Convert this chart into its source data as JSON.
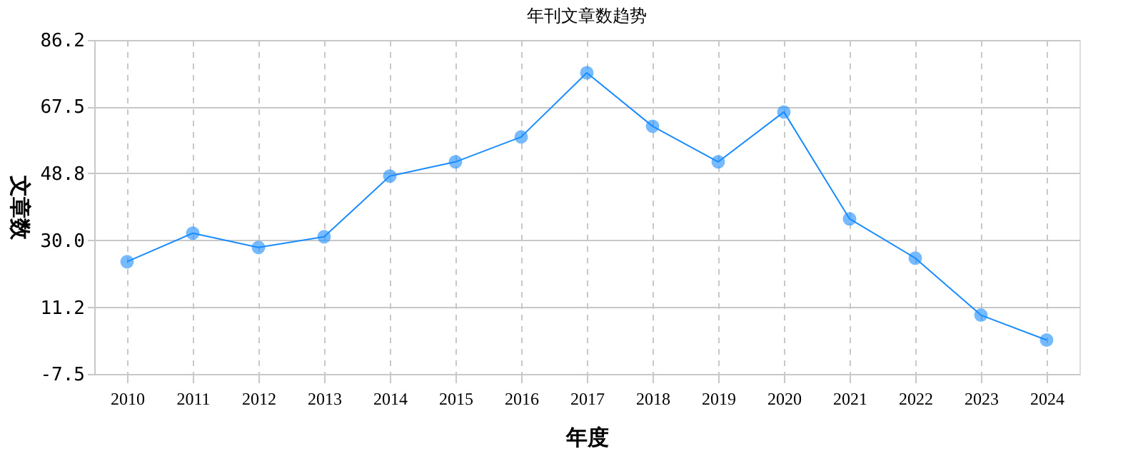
{
  "chart_data": {
    "type": "line",
    "title": "年刊文章数趋势",
    "xlabel": "年度",
    "ylabel": "文章数",
    "categories": [
      "2010",
      "2011",
      "2012",
      "2013",
      "2014",
      "2015",
      "2016",
      "2017",
      "2018",
      "2019",
      "2020",
      "2021",
      "2022",
      "2023",
      "2024"
    ],
    "series": [
      {
        "color": "#1a8cff",
        "values": [
          24,
          32,
          28,
          31,
          48,
          52,
          59,
          77,
          62,
          52,
          66,
          36,
          25,
          9,
          2
        ]
      }
    ],
    "ylim": [
      -7.5,
      86.2
    ],
    "yticks": [
      {
        "value": -7.5,
        "label": "-7.5"
      },
      {
        "value": 11.2,
        "label": "11.2"
      },
      {
        "value": 30,
        "label": "30.0"
      },
      {
        "value": 48.8,
        "label": "48.8"
      },
      {
        "value": 67.5,
        "label": "67.5"
      },
      {
        "value": 86.2,
        "label": "86.2"
      }
    ],
    "grid": true,
    "marker": "circle",
    "legend": false
  }
}
